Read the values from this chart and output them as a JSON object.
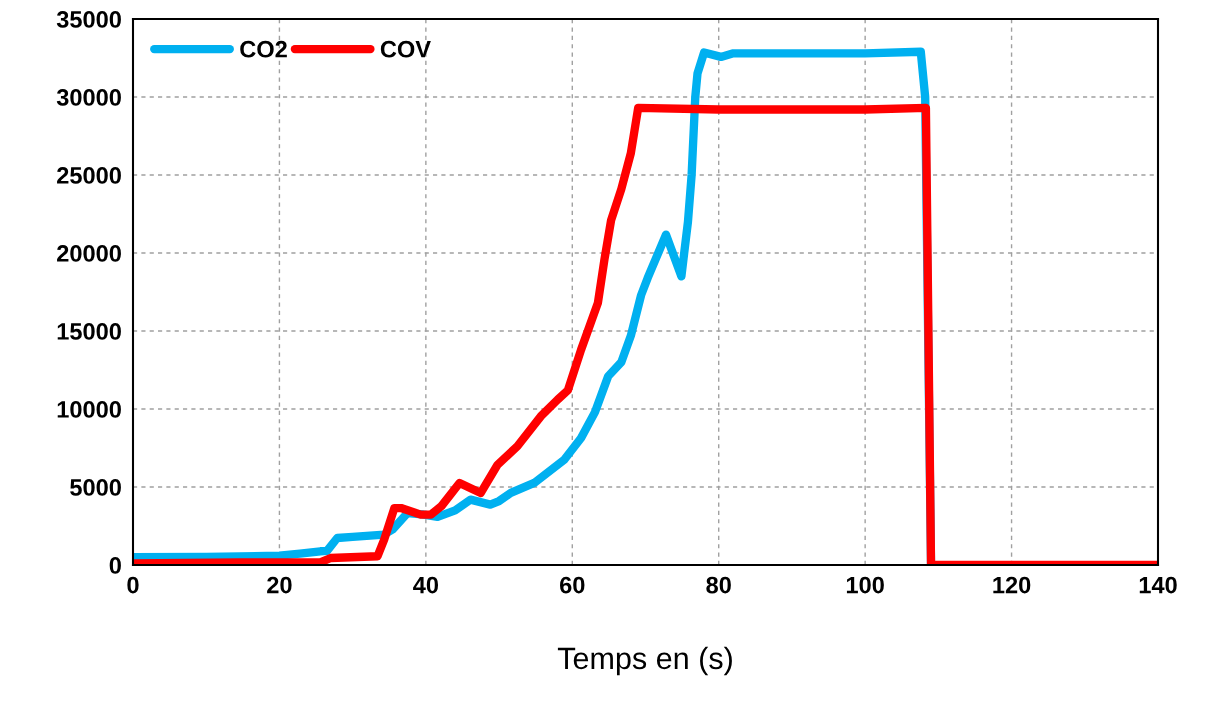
{
  "chart_data": {
    "type": "line",
    "xlabel": "Temps en (s)",
    "xlim": [
      0,
      140
    ],
    "xticks": [
      0,
      20,
      40,
      60,
      80,
      100,
      120,
      140
    ],
    "ylim": [
      0,
      35000
    ],
    "yticks": [
      0,
      5000,
      10000,
      15000,
      20000,
      25000,
      30000,
      35000
    ],
    "grid": true,
    "legend": "top left",
    "marker": "none",
    "line_style": "solid",
    "series": [
      {
        "name": "CO2",
        "color": "#00b0f0",
        "x": [
          0,
          10,
          14.6,
          20,
          22.8,
          25.6,
          26.5,
          27.9,
          30,
          34.3,
          35.5,
          37.5,
          39.5,
          41.6,
          44,
          46.1,
          48.8,
          50,
          51.6,
          54.8,
          58.9,
          61.2,
          63.1,
          64.9,
          66.7,
          68,
          69.4,
          70.3,
          72.8,
          74.9,
          75.8,
          76.3,
          76.8,
          77.1,
          78,
          80.3,
          82,
          90,
          100,
          107.6,
          108.2,
          109
        ],
        "values": [
          500,
          520,
          550,
          600,
          730,
          880,
          900,
          1730,
          1800,
          1950,
          2300,
          3330,
          3250,
          3080,
          3500,
          4190,
          3870,
          4100,
          4620,
          5260,
          6750,
          8140,
          9800,
          12100,
          13000,
          14700,
          17300,
          18400,
          21180,
          18500,
          22000,
          25000,
          30000,
          31500,
          32850,
          32570,
          32800,
          32800,
          32800,
          32900,
          30000,
          0
        ]
      },
      {
        "name": "COV",
        "color": "#ff0000",
        "x": [
          0,
          14.6,
          25.6,
          27,
          33.4,
          34.3,
          35.7,
          36.6,
          39.3,
          40.7,
          42.1,
          44.6,
          47.5,
          49.8,
          52.5,
          55.7,
          58,
          59.4,
          61.2,
          63.5,
          64.4,
          65.3,
          66.7,
          68,
          69,
          80,
          100,
          108.3,
          109,
          120,
          140
        ],
        "values": [
          100,
          170,
          170,
          450,
          560,
          1620,
          3650,
          3650,
          3230,
          3230,
          3760,
          5260,
          4620,
          6430,
          7610,
          9530,
          10600,
          11200,
          13800,
          16800,
          19600,
          22100,
          24100,
          26400,
          29300,
          29200,
          29200,
          29300,
          0,
          0,
          0
        ]
      }
    ]
  }
}
